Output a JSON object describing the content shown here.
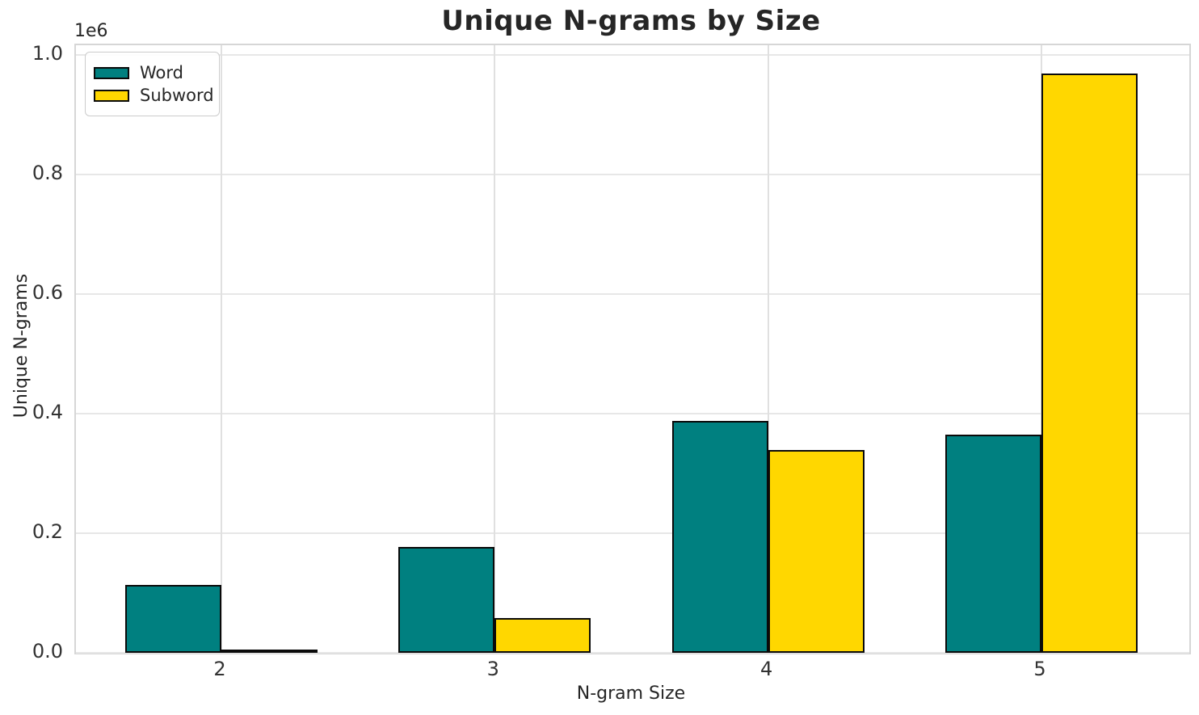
{
  "chart_data": {
    "type": "bar",
    "title": "Unique N-grams by Size",
    "xlabel": "N-gram Size",
    "ylabel": "Unique N-grams",
    "y_offset_label": "1e6",
    "categories": [
      "2",
      "3",
      "4",
      "5"
    ],
    "series": [
      {
        "name": "Word",
        "color": "#008080",
        "values": [
          113000,
          177000,
          388000,
          365000
        ]
      },
      {
        "name": "Subword",
        "color": "#FFD700",
        "values": [
          5000,
          58000,
          339000,
          969000
        ]
      }
    ],
    "bar_edge_color": "#0a0a0a",
    "y_ticks": [
      0.0,
      0.2,
      0.4,
      0.6,
      0.8,
      1.0
    ],
    "y_tick_labels": [
      "0.0",
      "0.2",
      "0.4",
      "0.6",
      "0.8",
      "1.0"
    ],
    "ylim": [
      0,
      1016000
    ],
    "grid": true,
    "legend_position": "upper left"
  }
}
